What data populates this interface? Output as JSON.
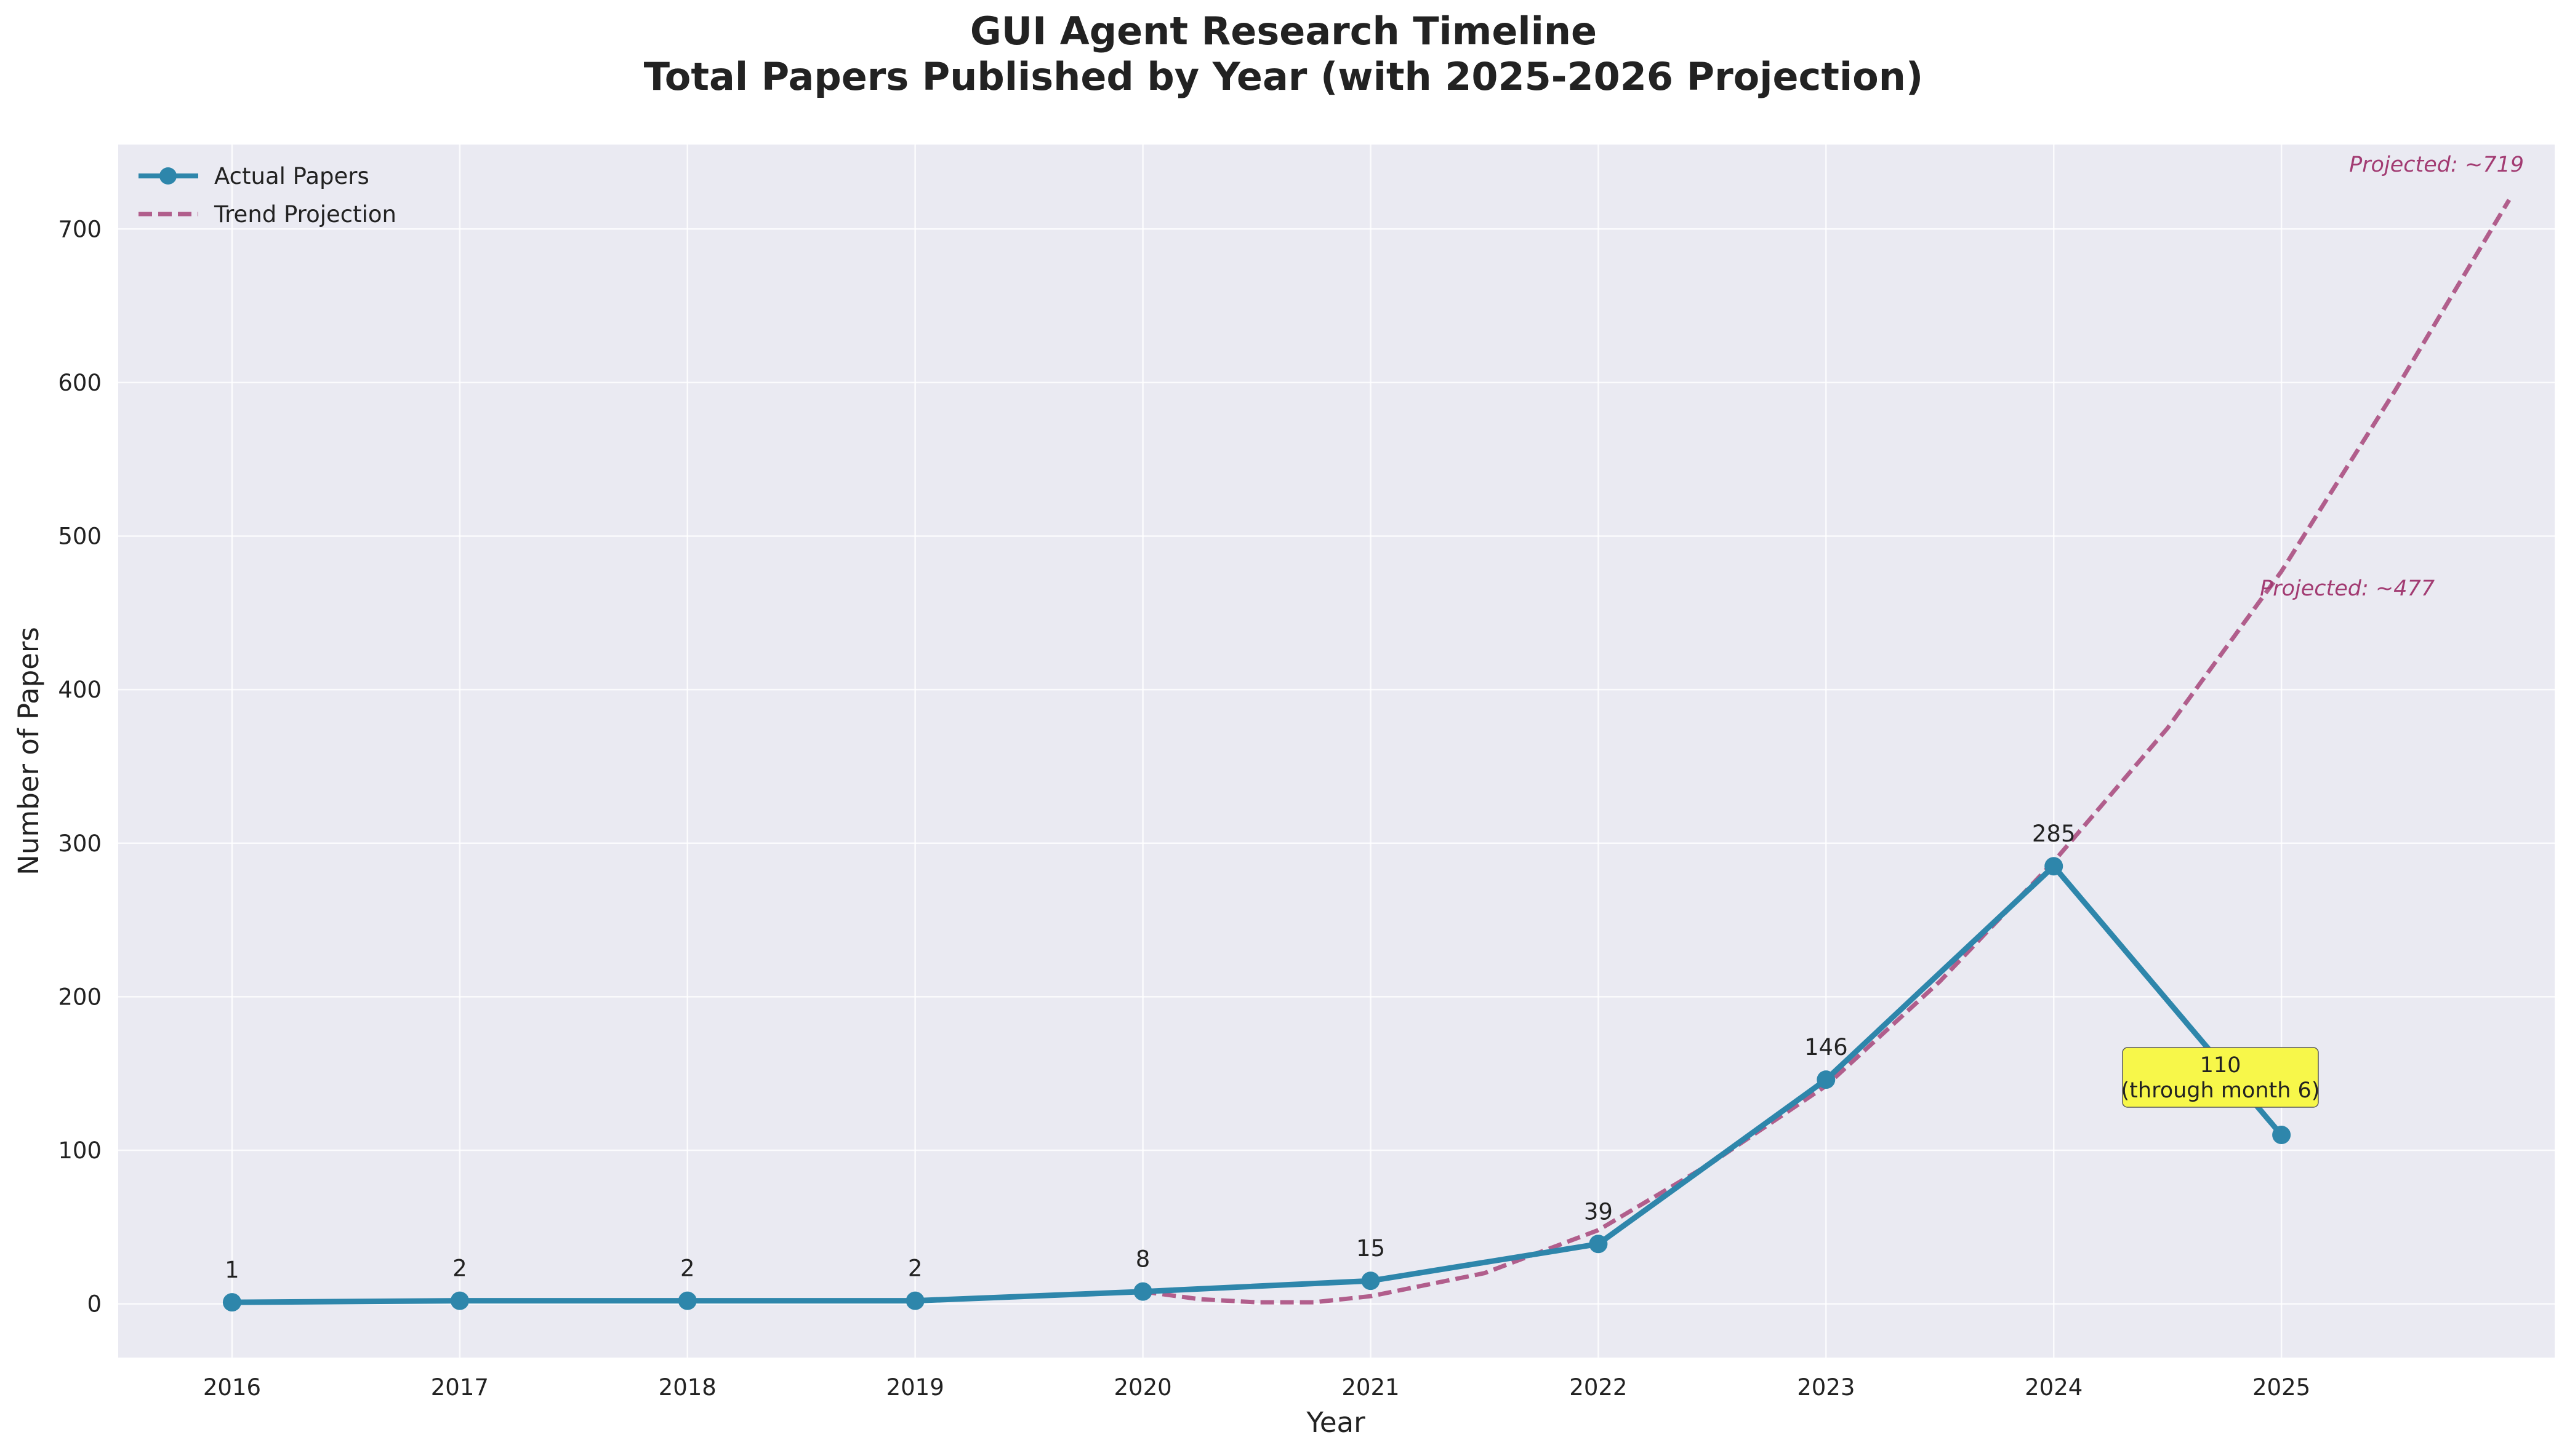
{
  "chart_data": {
    "type": "line",
    "title": "GUI Agent Research Timeline",
    "subtitle": "Total Papers Published by Year (with 2025-2026 Projection)",
    "xlabel": "Year",
    "ylabel": "Number of Papers",
    "x_ticks": [
      "2016",
      "2017",
      "2018",
      "2019",
      "2020",
      "2021",
      "2022",
      "2023",
      "2024",
      "2025"
    ],
    "y_ticks": [
      "0",
      "100",
      "200",
      "300",
      "400",
      "500",
      "600",
      "700"
    ],
    "xlim": [
      2015.5,
      2026.2
    ],
    "ylim": [
      -35,
      755
    ],
    "grid": true,
    "legend_position": "top-left",
    "series": [
      {
        "name": "Actual Papers",
        "style": "solid-line-with-markers",
        "color": "#2e86ab",
        "x": [
          2016,
          2017,
          2018,
          2019,
          2020,
          2021,
          2022,
          2023,
          2024,
          2025
        ],
        "y": [
          1,
          2,
          2,
          2,
          8,
          15,
          39,
          146,
          285,
          110
        ],
        "labels": [
          "1",
          "2",
          "2",
          "2",
          "8",
          "15",
          "39",
          "146",
          "285",
          ""
        ]
      },
      {
        "name": "Trend Projection",
        "style": "dashed",
        "color": "#a23b72",
        "x": [
          2020,
          2020.25,
          2020.5,
          2020.75,
          2021,
          2021.5,
          2022,
          2022.5,
          2023,
          2023.5,
          2024,
          2024.5,
          2025,
          2025.5,
          2026
        ],
        "y": [
          8,
          3,
          1,
          1,
          5,
          20,
          48,
          92,
          142,
          210,
          288,
          375,
          477,
          595,
          719
        ]
      }
    ],
    "annotations": [
      {
        "text_lines": [
          "110",
          "(through month 6)"
        ],
        "x": 2025,
        "y": 150,
        "style": "yellow-box"
      }
    ],
    "projection_labels": [
      {
        "text": "Projected: ~719",
        "x": 2026,
        "y": 740
      },
      {
        "text": "Projected: ~477",
        "x": 2025.6,
        "y": 464
      }
    ]
  },
  "colors": {
    "plot_bg": "#eaeaf2",
    "grid": "#ffffff",
    "actual": "#2e86ab",
    "projection": "#a23b72",
    "annotation_bg": "#f7f74a"
  }
}
